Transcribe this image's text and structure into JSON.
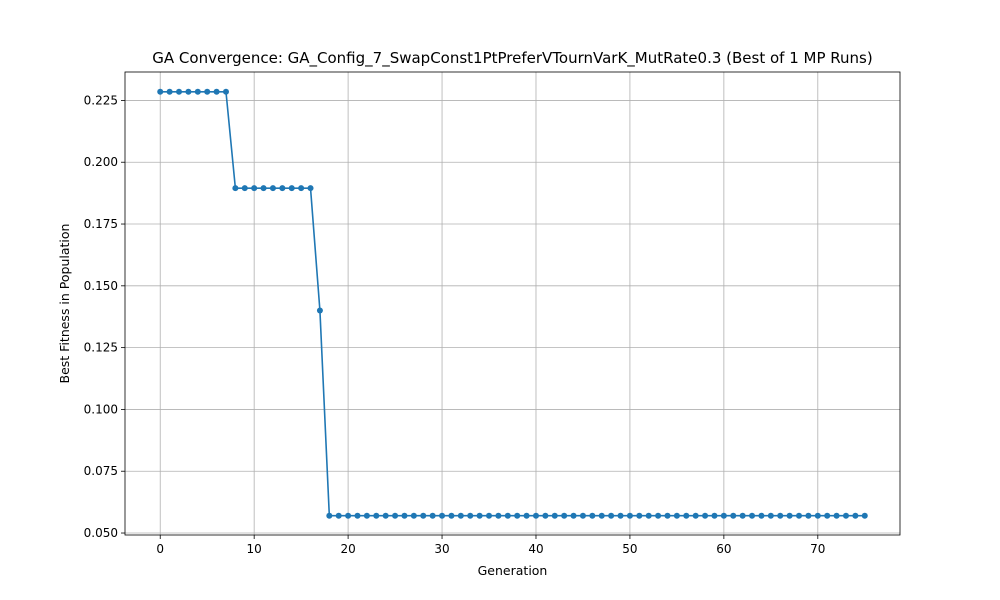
{
  "chart_data": {
    "type": "line",
    "title": "GA Convergence: GA_Config_7_SwapConst1PtPreferVTournVarK_MutRate0.3 (Best of 1 MP Runs)",
    "xlabel": "Generation",
    "ylabel": "Best Fitness in Population",
    "xlim": [
      -3.75,
      78.75
    ],
    "ylim": [
      0.0492,
      0.2365
    ],
    "xticks": [
      0,
      10,
      20,
      30,
      40,
      50,
      60,
      70
    ],
    "xtick_labels": [
      "0",
      "10",
      "20",
      "30",
      "40",
      "50",
      "60",
      "70"
    ],
    "yticks": [
      0.05,
      0.075,
      0.1,
      0.125,
      0.15,
      0.175,
      0.2,
      0.225
    ],
    "ytick_labels": [
      "0.050",
      "0.075",
      "0.100",
      "0.125",
      "0.150",
      "0.175",
      "0.200",
      "0.225"
    ],
    "grid": true,
    "series": [
      {
        "color": "#1f77b4",
        "marker": "circle",
        "x": [
          0,
          1,
          2,
          3,
          4,
          5,
          6,
          7,
          8,
          9,
          10,
          11,
          12,
          13,
          14,
          15,
          16,
          17,
          18,
          19,
          20,
          21,
          22,
          23,
          24,
          25,
          26,
          27,
          28,
          29,
          30,
          31,
          32,
          33,
          34,
          35,
          36,
          37,
          38,
          39,
          40,
          41,
          42,
          43,
          44,
          45,
          46,
          47,
          48,
          49,
          50,
          51,
          52,
          53,
          54,
          55,
          56,
          57,
          58,
          59,
          60,
          61,
          62,
          63,
          64,
          65,
          66,
          67,
          68,
          69,
          70,
          71,
          72,
          73,
          74,
          75
        ],
        "y": [
          0.2285,
          0.2285,
          0.2285,
          0.2285,
          0.2285,
          0.2285,
          0.2285,
          0.2285,
          0.1895,
          0.1895,
          0.1895,
          0.1895,
          0.1895,
          0.1895,
          0.1895,
          0.1895,
          0.1895,
          0.14,
          0.057,
          0.057,
          0.057,
          0.057,
          0.057,
          0.057,
          0.057,
          0.057,
          0.057,
          0.057,
          0.057,
          0.057,
          0.057,
          0.057,
          0.057,
          0.057,
          0.057,
          0.057,
          0.057,
          0.057,
          0.057,
          0.057,
          0.057,
          0.057,
          0.057,
          0.057,
          0.057,
          0.057,
          0.057,
          0.057,
          0.057,
          0.057,
          0.057,
          0.057,
          0.057,
          0.057,
          0.057,
          0.057,
          0.057,
          0.057,
          0.057,
          0.057,
          0.057,
          0.057,
          0.057,
          0.057,
          0.057,
          0.057,
          0.057,
          0.057,
          0.057,
          0.057,
          0.057,
          0.057,
          0.057,
          0.057,
          0.057,
          0.057
        ]
      }
    ]
  }
}
